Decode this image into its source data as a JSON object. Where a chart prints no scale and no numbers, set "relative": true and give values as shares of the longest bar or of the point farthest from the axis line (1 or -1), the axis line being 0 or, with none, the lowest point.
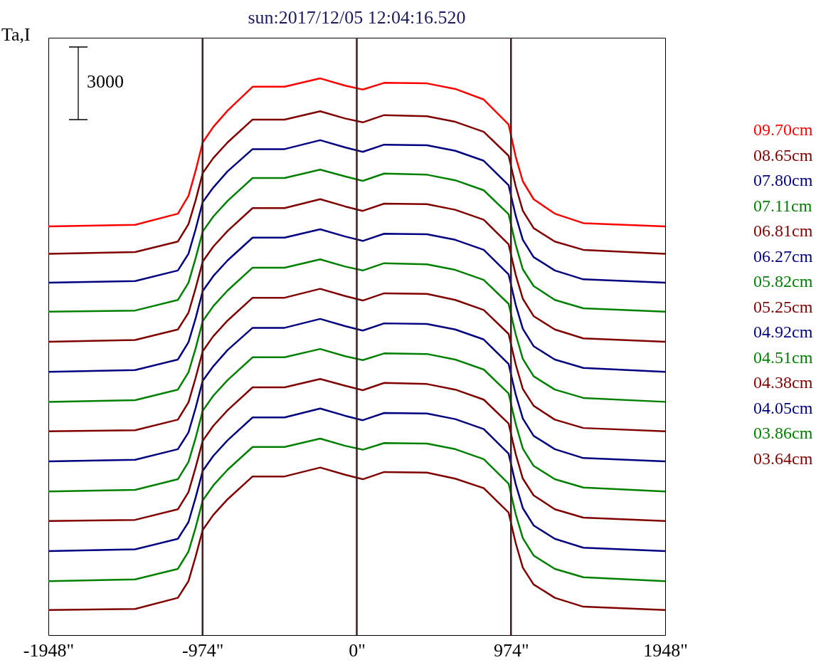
{
  "chart_data": {
    "type": "line",
    "title": "sun:2017/12/05 12:04:16.520",
    "ylabel": "Ta,I",
    "annotations": [
      "3000"
    ],
    "relative": true,
    "legend": "right",
    "x": [
      -1948,
      -1400,
      -1130,
      -1063,
      -1018,
      -973,
      -906,
      -816,
      -658,
      -456,
      -231,
      -74,
      38,
      173,
      443,
      622,
      802,
      959,
      1004,
      1049,
      1117,
      1251,
      1431,
      1948
    ],
    "xlim": [
      -1948,
      1948
    ],
    "xticks": [
      {
        "value": -1948,
        "label": "-1948\""
      },
      {
        "value": -974,
        "label": "-974\""
      },
      {
        "value": 0,
        "label": "0\""
      },
      {
        "value": 974,
        "label": "974\""
      },
      {
        "value": 1948,
        "label": "1948\""
      }
    ],
    "ref_lines": [
      {
        "axis": "x",
        "value": -974,
        "color": "#3c1e1e"
      },
      {
        "axis": "x",
        "value": 0,
        "color": "#3c1e1e"
      },
      {
        "axis": "x",
        "value": 974,
        "color": "#3c1e1e"
      }
    ],
    "series": [
      {
        "name": "09.70cm",
        "color": "#ff0000",
        "values": [
          0.734,
          0.737,
          0.757,
          0.789,
          0.834,
          0.885,
          0.913,
          0.942,
          0.985,
          0.985,
          1.0,
          0.987,
          0.98,
          0.992,
          0.991,
          0.981,
          0.962,
          0.917,
          0.859,
          0.815,
          0.783,
          0.757,
          0.74,
          0.734
        ]
      },
      {
        "name": "08.65cm",
        "color": "#800000",
        "values": [
          0.685,
          0.688,
          0.707,
          0.738,
          0.781,
          0.83,
          0.857,
          0.885,
          0.926,
          0.926,
          0.941,
          0.928,
          0.921,
          0.934,
          0.932,
          0.922,
          0.904,
          0.861,
          0.806,
          0.762,
          0.731,
          0.707,
          0.692,
          0.685
        ]
      },
      {
        "name": "07.80cm",
        "color": "#000080",
        "values": [
          0.633,
          0.636,
          0.655,
          0.685,
          0.729,
          0.778,
          0.804,
          0.833,
          0.873,
          0.873,
          0.889,
          0.876,
          0.868,
          0.881,
          0.88,
          0.87,
          0.852,
          0.808,
          0.753,
          0.71,
          0.679,
          0.655,
          0.639,
          0.633
        ]
      },
      {
        "name": "07.11cm",
        "color": "#008000",
        "values": [
          0.581,
          0.583,
          0.602,
          0.633,
          0.677,
          0.725,
          0.752,
          0.78,
          0.821,
          0.821,
          0.836,
          0.824,
          0.816,
          0.829,
          0.827,
          0.817,
          0.799,
          0.756,
          0.701,
          0.657,
          0.627,
          0.602,
          0.587,
          0.581
        ]
      },
      {
        "name": "06.81cm",
        "color": "#800000",
        "values": [
          0.527,
          0.53,
          0.549,
          0.579,
          0.623,
          0.671,
          0.698,
          0.726,
          0.767,
          0.767,
          0.783,
          0.77,
          0.762,
          0.775,
          0.774,
          0.764,
          0.746,
          0.702,
          0.647,
          0.604,
          0.573,
          0.549,
          0.533,
          0.527
        ]
      },
      {
        "name": "06.27cm",
        "color": "#000080",
        "values": [
          0.473,
          0.476,
          0.495,
          0.526,
          0.569,
          0.618,
          0.645,
          0.673,
          0.714,
          0.714,
          0.729,
          0.716,
          0.708,
          0.721,
          0.72,
          0.71,
          0.692,
          0.648,
          0.593,
          0.55,
          0.519,
          0.495,
          0.48,
          0.473
        ]
      },
      {
        "name": "05.82cm",
        "color": "#008000",
        "values": [
          0.419,
          0.422,
          0.441,
          0.472,
          0.515,
          0.564,
          0.591,
          0.619,
          0.66,
          0.66,
          0.675,
          0.662,
          0.655,
          0.668,
          0.666,
          0.656,
          0.638,
          0.595,
          0.54,
          0.496,
          0.465,
          0.441,
          0.426,
          0.419
        ]
      },
      {
        "name": "05.25cm",
        "color": "#800000",
        "values": [
          0.366,
          0.368,
          0.387,
          0.418,
          0.462,
          0.51,
          0.537,
          0.565,
          0.606,
          0.606,
          0.622,
          0.609,
          0.601,
          0.614,
          0.613,
          0.602,
          0.584,
          0.541,
          0.486,
          0.442,
          0.412,
          0.387,
          0.372,
          0.366
        ]
      },
      {
        "name": "04.92cm",
        "color": "#000080",
        "values": [
          0.312,
          0.315,
          0.334,
          0.364,
          0.408,
          0.457,
          0.483,
          0.512,
          0.552,
          0.552,
          0.568,
          0.555,
          0.547,
          0.56,
          0.559,
          0.549,
          0.531,
          0.487,
          0.432,
          0.389,
          0.358,
          0.334,
          0.318,
          0.312
        ]
      },
      {
        "name": "04.51cm",
        "color": "#008000",
        "values": [
          0.258,
          0.261,
          0.28,
          0.311,
          0.354,
          0.403,
          0.43,
          0.458,
          0.499,
          0.499,
          0.514,
          0.501,
          0.494,
          0.506,
          0.505,
          0.495,
          0.477,
          0.434,
          0.379,
          0.335,
          0.304,
          0.28,
          0.265,
          0.258
        ]
      },
      {
        "name": "04.38cm",
        "color": "#800000",
        "values": [
          0.205,
          0.207,
          0.226,
          0.257,
          0.301,
          0.349,
          0.376,
          0.404,
          0.445,
          0.445,
          0.46,
          0.448,
          0.44,
          0.453,
          0.451,
          0.441,
          0.423,
          0.38,
          0.325,
          0.281,
          0.251,
          0.226,
          0.211,
          0.205
        ]
      },
      {
        "name": "04.05cm",
        "color": "#000080",
        "values": [
          0.151,
          0.154,
          0.173,
          0.203,
          0.247,
          0.295,
          0.322,
          0.35,
          0.391,
          0.391,
          0.407,
          0.394,
          0.386,
          0.399,
          0.398,
          0.388,
          0.37,
          0.326,
          0.271,
          0.228,
          0.197,
          0.173,
          0.157,
          0.151
        ]
      },
      {
        "name": "03.86cm",
        "color": "#008000",
        "values": [
          0.097,
          0.1,
          0.119,
          0.15,
          0.193,
          0.242,
          0.269,
          0.297,
          0.338,
          0.338,
          0.353,
          0.34,
          0.333,
          0.345,
          0.344,
          0.334,
          0.316,
          0.272,
          0.217,
          0.174,
          0.143,
          0.119,
          0.104,
          0.097
        ]
      },
      {
        "name": "03.64cm",
        "color": "#800000",
        "values": [
          0.045,
          0.047,
          0.067,
          0.097,
          0.141,
          0.189,
          0.216,
          0.244,
          0.285,
          0.285,
          0.301,
          0.288,
          0.28,
          0.293,
          0.292,
          0.281,
          0.264,
          0.22,
          0.165,
          0.121,
          0.091,
          0.067,
          0.051,
          0.045
        ]
      }
    ]
  }
}
